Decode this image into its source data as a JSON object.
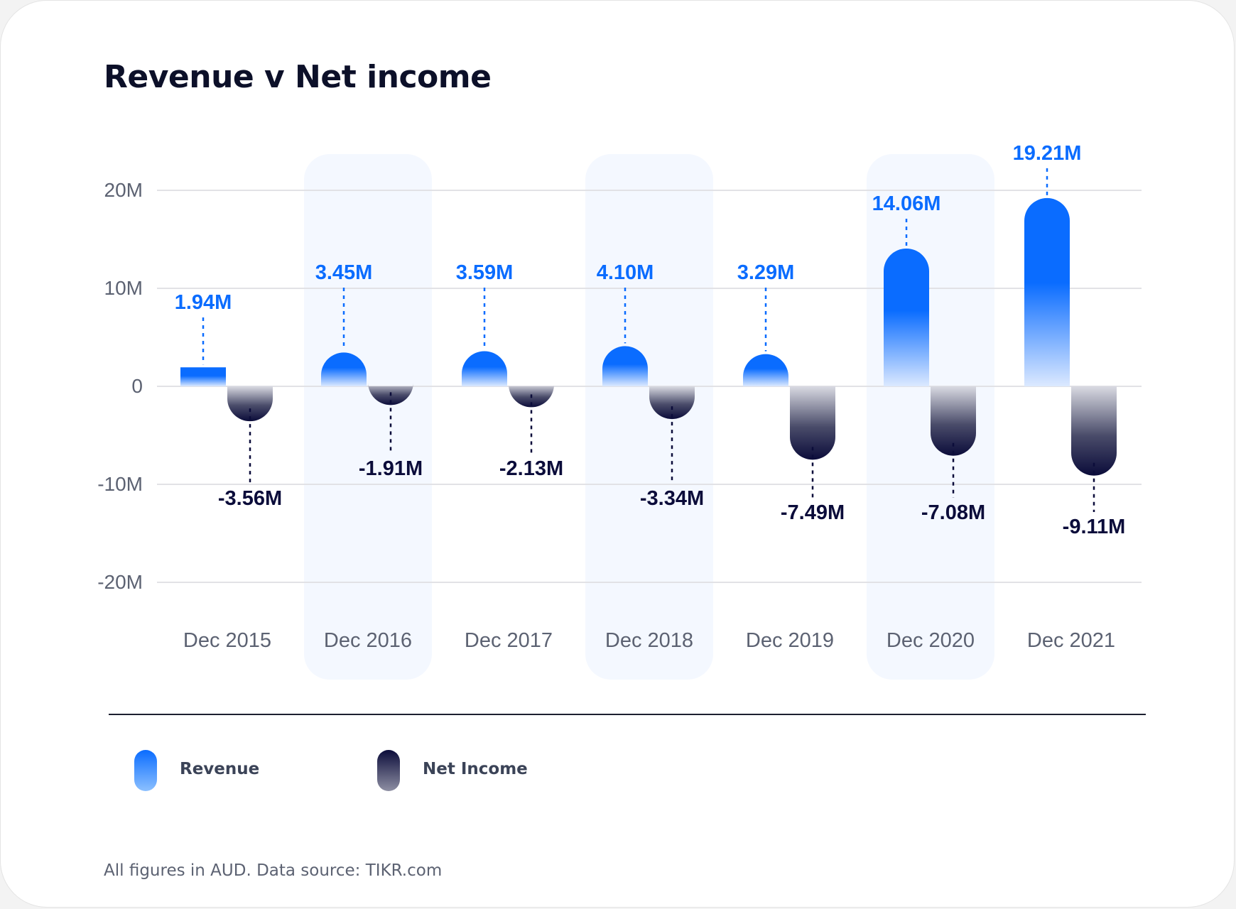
{
  "title": "Revenue v Net income",
  "footnote": "All figures in AUD. Data source: TIKR.com",
  "colors": {
    "revenue": "#0a6cff",
    "net_income": "#0b0c3a",
    "grid": "#e2e2e6",
    "highlight": "#f4f8ff",
    "axis_text": "#5c6272"
  },
  "legend": [
    {
      "label": "Revenue",
      "swatch": "revenue"
    },
    {
      "label": "Net Income",
      "swatch": "net_income"
    }
  ],
  "chart_data": {
    "type": "bar",
    "categories": [
      "Dec 2015",
      "Dec 2016",
      "Dec 2017",
      "Dec 2018",
      "Dec 2019",
      "Dec 2020",
      "Dec 2021"
    ],
    "highlighted_categories": [
      "Dec 2016",
      "Dec 2018",
      "Dec 2020"
    ],
    "series": [
      {
        "name": "Revenue",
        "values": [
          1.94,
          3.45,
          3.59,
          4.1,
          3.29,
          14.06,
          19.21
        ],
        "labels": [
          "1.94M",
          "3.45M",
          "3.59M",
          "4.10M",
          "3.29M",
          "14.06M",
          "19.21M"
        ]
      },
      {
        "name": "Net Income",
        "values": [
          -3.56,
          -1.91,
          -2.13,
          -3.34,
          -7.49,
          -7.08,
          -9.11
        ],
        "labels": [
          "-3.56M",
          "-1.91M",
          "-2.13M",
          "-3.34M",
          "-7.49M",
          "-7.08M",
          "-9.11M"
        ]
      }
    ],
    "y_ticks": [
      {
        "value": 20,
        "label": "20M"
      },
      {
        "value": 10,
        "label": "10M"
      },
      {
        "value": 0,
        "label": "0"
      },
      {
        "value": -10,
        "label": "-10M"
      },
      {
        "value": -20,
        "label": "-20M"
      }
    ],
    "ylim": [
      -20,
      20
    ],
    "grid": true,
    "legend_position": "bottom-left"
  }
}
